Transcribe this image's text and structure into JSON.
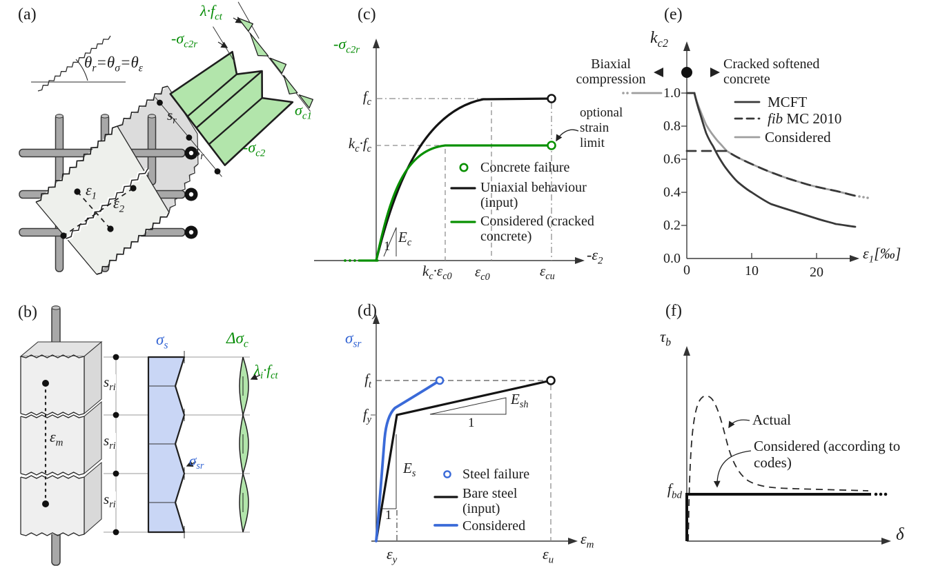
{
  "figure": {
    "kind": "six-panel scientific figure on cracked reinforced concrete material models"
  },
  "colors": {
    "green": "#068c06",
    "green_fill": "#b2e5ab",
    "blue": "#3566d4",
    "blue_fill": "#c9d6f5",
    "dark_curve": "#383838",
    "gray_curve": "#9e9e9e",
    "concrete": "#eef0ec",
    "concrete_dark": "#dcdcdc",
    "rebar": "#a8a8a8"
  },
  "panels": {
    "a": {
      "tag": "(a)",
      "theta": "θ_{r}=θ_{σ}=θ_{ε}",
      "lambda_fct": "λ·f_{ct}",
      "sigma_c2r": "-σ_{c2r}",
      "sigma_c1": "σ_{c1}",
      "sigma_c2": "-σ_{c2}",
      "s_r": "s_{r}",
      "eps_1": "ε_{1}",
      "eps_2": "ε_{2}"
    },
    "b": {
      "tag": "(b)",
      "sigma_s": "σ_{s}",
      "delta_sigma_c": "Δσ_{c}",
      "lambda_i_fct": "λ_{i}·f_{ct}",
      "sigma_sr": "σ_{sr}",
      "eps_m": "ε_{m}",
      "s_ri": "s_{ri}"
    },
    "c": {
      "tag": "(c)",
      "ylabel": "-σ_{c2r}",
      "xlabel": "-ε_{2}",
      "f_c": "f_{c}",
      "kc_fc": "k_{c}·f_{c}",
      "E_c": "E_{c}",
      "one": "1",
      "kc_ec0": "k_{c}·ε_{c0}",
      "eps_c0": "ε_{c0}",
      "eps_cu": "ε_{cu}",
      "legend": [
        "Concrete failure",
        "Uniaxial behaviour (input)",
        "Considered (cracked concrete)"
      ],
      "note": "optional strain limit"
    },
    "d": {
      "tag": "(d)",
      "ylabel": "σ_{sr}",
      "xlabel": "ε_{m}",
      "f_t": "f_{t}",
      "f_y": "f_{y}",
      "E_s": "E_{s}",
      "E_sh": "E_{sh}",
      "one": "1",
      "eps_y": "ε_{y}",
      "eps_u": "ε_{u}",
      "legend": [
        "Steel failure",
        "Bare steel (input)",
        "Considered"
      ]
    },
    "e": {
      "tag": "(e)",
      "ylabel": "k_{c2}",
      "xlabel": "ε_{1}[‰]",
      "yticks": [
        "1.0",
        "0.8",
        "0.6",
        "0.4",
        "0.2",
        "0.0"
      ],
      "xticks": [
        "0",
        "10",
        "20"
      ],
      "note_left": "Biaxial compression",
      "note_right": "Cracked softened concrete",
      "legend_mcft": "MCFT",
      "legend_fib_italic": "fib",
      "legend_fib_rest": " MC 2010",
      "legend_considered": "Considered"
    },
    "f": {
      "tag": "(f)",
      "ylabel": "τ_{b}",
      "xlabel": "δ",
      "f_bd": "f_{bd}",
      "actual": "Actual",
      "considered": "Considered (according to codes)"
    }
  },
  "chart_data": [
    {
      "panel": "c",
      "type": "line",
      "xlabel": "-ε_2",
      "ylabel": "-σ_c2r",
      "x_ticks": [
        "k_c·ε_c0",
        "ε_c0",
        "ε_cu"
      ],
      "y_ticks": [
        "k_c·f_c",
        "f_c"
      ],
      "series": [
        {
          "name": "Uniaxial behaviour (input)",
          "color": "#141414",
          "style": "solid",
          "shape": "parabolic rise with initial slope E_c to f_c at ε_c0, plateau at f_c until ε_cu",
          "key_points": [
            [
              "0",
              "0"
            ],
            [
              "ε_c0",
              "f_c"
            ],
            [
              "ε_cu",
              "f_c"
            ]
          ],
          "end_marker": "open circle (concrete failure)"
        },
        {
          "name": "Considered (cracked concrete)",
          "color": "#089000",
          "style": "solid",
          "shape": "parabolic rise to k_c·f_c at k_c·ε_c0, plateau at k_c·f_c until ε_cu",
          "key_points": [
            [
              "0",
              "0"
            ],
            [
              "k_c·ε_c0",
              "k_c·f_c"
            ],
            [
              "ε_cu",
              "k_c·f_c"
            ]
          ],
          "end_marker": "open circle (concrete failure)"
        }
      ],
      "annotations": [
        "E_c slope triangle (1)",
        "optional strain limit at ε_cu"
      ]
    },
    {
      "panel": "d",
      "type": "line",
      "xlabel": "ε_m",
      "ylabel": "σ_sr",
      "x_ticks": [
        "ε_y",
        "ε_u"
      ],
      "y_ticks": [
        "f_y",
        "f_t"
      ],
      "series": [
        {
          "name": "Bare steel (input)",
          "color": "#141414",
          "style": "solid",
          "shape": "bilinear: elastic slope E_s to (ε_y, f_y), hardening slope E_sh to (ε_u, f_t)",
          "key_points": [
            [
              "0",
              "0"
            ],
            [
              "ε_y",
              "f_y"
            ],
            [
              "ε_u",
              "f_t"
            ]
          ],
          "end_marker": "open circle (steel failure)"
        },
        {
          "name": "Considered",
          "color": "#3a6ad8",
          "style": "solid",
          "shape": "tension-stiffened response, stiffer than bare steel, reaches f_t at strain well below ε_u",
          "end_marker": "open circle (steel failure)"
        }
      ],
      "annotations": [
        "E_s slope triangle (1)",
        "E_sh slope triangle (1)"
      ]
    },
    {
      "panel": "e",
      "type": "line",
      "xlabel": "ε_1 [‰]",
      "ylabel": "k_c2",
      "xlim": [
        0,
        27
      ],
      "ylim": [
        0.0,
        1.15
      ],
      "x_ticks": [
        0,
        10,
        20
      ],
      "y_ticks": [
        0.0,
        0.2,
        0.4,
        0.6,
        0.8,
        1.0
      ],
      "series": [
        {
          "name": "MCFT",
          "color": "#383838",
          "style": "solid",
          "x": [
            0,
            1.2,
            2,
            3,
            4,
            5,
            6,
            8,
            10,
            13,
            16,
            20,
            23,
            26
          ],
          "y": [
            1.0,
            1.0,
            0.88,
            0.76,
            0.68,
            0.61,
            0.55,
            0.46,
            0.4,
            0.33,
            0.29,
            0.24,
            0.21,
            0.19
          ]
        },
        {
          "name": "fib MC 2010",
          "color": "#383838",
          "style": "dashed",
          "x": [
            0,
            6.2,
            8,
            10,
            13,
            16,
            20,
            23,
            26
          ],
          "y": [
            0.65,
            0.65,
            0.61,
            0.57,
            0.52,
            0.48,
            0.44,
            0.41,
            0.38
          ]
        },
        {
          "name": "Considered",
          "color": "#9e9e9e",
          "style": "solid",
          "x": [
            0,
            1.2,
            2,
            3,
            4,
            5,
            6.2,
            8,
            10,
            13,
            16,
            20,
            23,
            26
          ],
          "y": [
            1.0,
            1.0,
            0.9,
            0.81,
            0.75,
            0.7,
            0.65,
            0.61,
            0.57,
            0.52,
            0.48,
            0.44,
            0.41,
            0.38
          ]
        }
      ],
      "annotations": [
        "solid dot on axis at k_c2≈1.13: Biaxial compression (left) vs Cracked softened concrete (right)"
      ]
    },
    {
      "panel": "f",
      "type": "line",
      "xlabel": "δ",
      "ylabel": "τ_b",
      "y_ticks": [
        "f_bd"
      ],
      "series": [
        {
          "name": "Actual",
          "color": "#2a2a2a",
          "style": "dashed",
          "shape": "bond stress-slip: steep rise to peak ≈3·f_bd at small slip, asymptotic decay to ≈1.1·f_bd"
        },
        {
          "name": "Considered (according to codes)",
          "color": "#111111",
          "style": "solid",
          "shape": "rigid-perfectly-plastic: constant τ_b = f_bd for all δ"
        }
      ]
    }
  ]
}
